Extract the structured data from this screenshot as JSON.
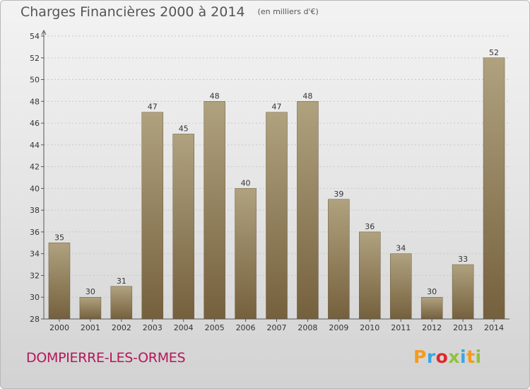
{
  "title": "Charges Financières 2000 à 2014",
  "subtitle": "(en milliers d'€)",
  "commune": "DOMPIERRE-LES-ORMES",
  "logo": {
    "letters": [
      "P",
      "r",
      "o",
      "x",
      "i",
      "t",
      "i"
    ],
    "colors": [
      "#f39b1e",
      "#3aa7e0",
      "#e2262b",
      "#8fc23f",
      "#3aa7e0",
      "#f39b1e",
      "#8fc23f"
    ]
  },
  "colors": {
    "bar_top": "#b0a27f",
    "bar_bottom": "#75603d",
    "axis": "#555555",
    "grid": "#c8c8c8"
  },
  "chart_data": {
    "type": "bar",
    "title": "Charges Financières 2000 à 2014",
    "subtitle": "(en milliers d'€)",
    "xlabel": "",
    "ylabel": "",
    "categories": [
      "2000",
      "2001",
      "2002",
      "2003",
      "2004",
      "2005",
      "2006",
      "2007",
      "2008",
      "2009",
      "2010",
      "2011",
      "2012",
      "2013",
      "2014"
    ],
    "values": [
      35,
      30,
      31,
      47,
      45,
      48,
      40,
      47,
      48,
      39,
      36,
      34,
      30,
      33,
      52
    ],
    "ylim": [
      28,
      54
    ],
    "yticks": [
      28,
      30,
      32,
      34,
      36,
      38,
      40,
      42,
      44,
      46,
      48,
      50,
      52,
      54
    ],
    "grid": true,
    "data_labels": true
  }
}
